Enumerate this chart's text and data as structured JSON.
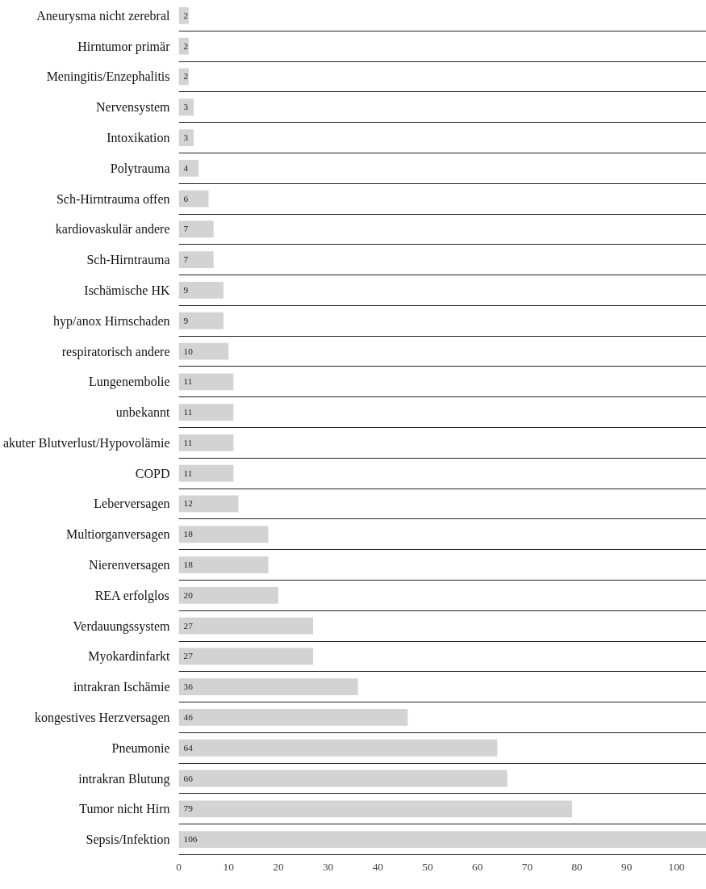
{
  "chart_data": {
    "type": "bar",
    "orientation": "horizontal",
    "categories": [
      "Aneurysma nicht zerebral",
      "Hirntumor primär",
      "Meningitis/Enzephalitis",
      "Nervensystem",
      "Intoxikation",
      "Polytrauma",
      "Sch-Hirntrauma offen",
      "kardiovaskulär andere",
      "Sch-Hirntrauma",
      "Ischämische HK",
      "hyp/anox Hirnschaden",
      "respiratorisch andere",
      "Lungenembolie",
      "unbekannt",
      "akuter Blutverlust/Hypovolämie",
      "COPD",
      "Leberversagen",
      "Multiorganversagen",
      "Nierenversagen",
      "REA erfolglos",
      "Verdauungssystem",
      "Myokardinfarkt",
      "intrakran Ischämie",
      "kongestives Herzversagen",
      "Pneumonie",
      "intrakran Blutung",
      "Tumor nicht Hirn",
      "Sepsis/Infektion"
    ],
    "values": [
      2,
      2,
      2,
      3,
      3,
      4,
      6,
      7,
      7,
      9,
      9,
      10,
      11,
      11,
      11,
      11,
      12,
      18,
      18,
      20,
      27,
      27,
      36,
      46,
      64,
      66,
      79,
      106
    ],
    "color": "#d3d3d3",
    "data_labels": true,
    "xlim": [
      0,
      106
    ],
    "xticks": [
      0,
      10,
      20,
      30,
      40,
      50,
      60,
      70,
      80,
      90,
      100
    ],
    "grid": "y"
  }
}
